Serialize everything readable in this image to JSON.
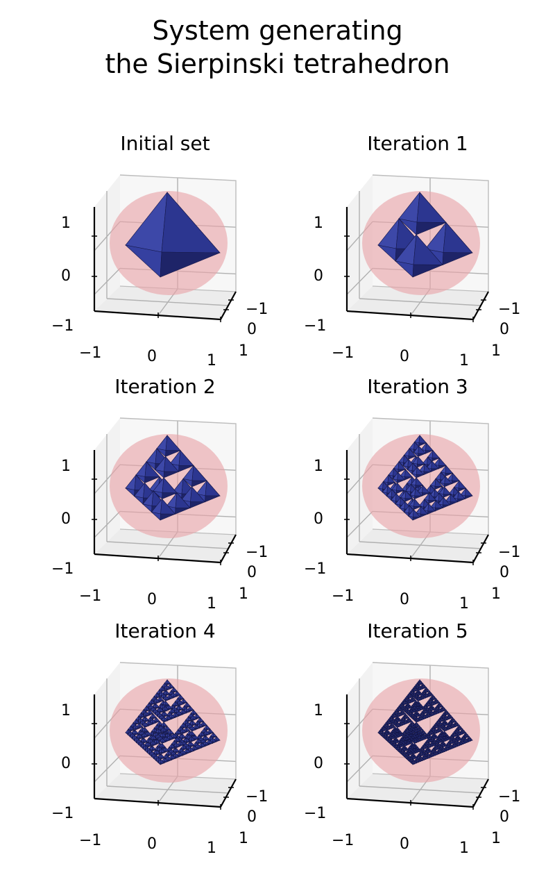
{
  "title": {
    "line1": "System generating",
    "line2": "the Sierpinski tetrahedron"
  },
  "panels": [
    {
      "title": "Initial set",
      "iteration": 0
    },
    {
      "title": "Iteration 1",
      "iteration": 1
    },
    {
      "title": "Iteration 2",
      "iteration": 2
    },
    {
      "title": "Iteration 3",
      "iteration": 3
    },
    {
      "title": "Iteration 4",
      "iteration": 4
    },
    {
      "title": "Iteration 5",
      "iteration": 5
    }
  ],
  "axes": {
    "z_ticks": [
      "1",
      "0",
      "−1"
    ],
    "x_ticks": [
      "−1",
      "0",
      "1"
    ],
    "y_ticks": [
      "−1",
      "0",
      "1"
    ]
  },
  "colors": {
    "sphere": "#e8a3a8",
    "tetra_light": "#3d48a8",
    "tetra_mid": "#2c3690",
    "tetra_dark": "#1e2468",
    "pane": "#f2f2f2",
    "grid": "#b0b0b0"
  }
}
